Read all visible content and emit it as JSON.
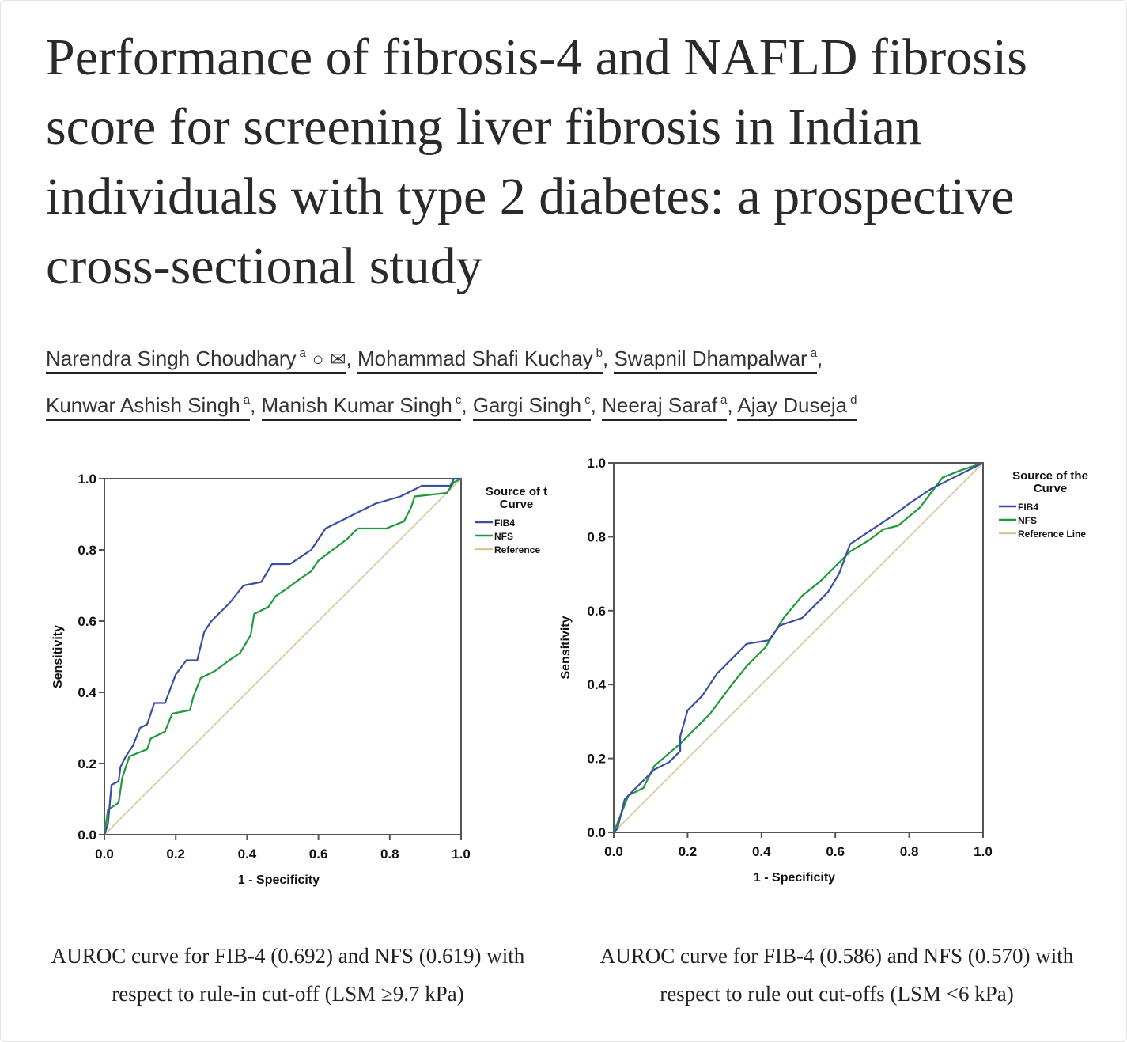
{
  "article": {
    "title": "Performance of fibrosis-4 and NAFLD fibrosis score for screening liver fibrosis in Indian individuals with type 2 diabetes: a prospective cross-sectional study",
    "authors": [
      {
        "name": "Narendra Singh Choudhary",
        "sup": "a",
        "icons": [
          "person-icon",
          "mail-icon"
        ]
      },
      {
        "name": "Mohammad Shafi Kuchay",
        "sup": "b"
      },
      {
        "name": "Swapnil Dhampalwar",
        "sup": "a"
      },
      {
        "name": "Kunwar Ashish Singh",
        "sup": "a"
      },
      {
        "name": "Manish Kumar Singh",
        "sup": "c"
      },
      {
        "name": "Gargi Singh",
        "sup": "c"
      },
      {
        "name": "Neeraj Saraf",
        "sup": "a"
      },
      {
        "name": "Ajay Duseja",
        "sup": "d"
      }
    ],
    "captions": [
      "AUROC curve for FIB-4 (0.692) and NFS (0.619) with respect to rule-in cut-off (LSM ≥9.7 kPa)",
      "AUROC curve for FIB-4 (0.586) and NFS (0.570) with respect to rule out cut-offs (LSM <6 kPa)"
    ]
  },
  "colors": {
    "fib4": "#3b4fa0",
    "nfs": "#1f9a3a",
    "reference": "#d9c79a",
    "axis": "#555555"
  },
  "chart_data": [
    {
      "type": "line",
      "xlabel": "1 - Specificity",
      "ylabel": "Sensitivity",
      "xlim": [
        0,
        1
      ],
      "ylim": [
        0,
        1
      ],
      "xticks": [
        "0.0",
        "0.2",
        "0.4",
        "0.6",
        "0.8",
        "1.0"
      ],
      "yticks": [
        "0.0",
        "0.2",
        "0.4",
        "0.6",
        "0.8",
        "1.0"
      ],
      "legend_title": [
        "Source of t",
        "Curve"
      ],
      "legend_position": "right",
      "series": [
        {
          "name": "FIB4",
          "color_key": "fib4",
          "points": [
            [
              0,
              0
            ],
            [
              0.01,
              0.03
            ],
            [
              0.02,
              0.14
            ],
            [
              0.04,
              0.15
            ],
            [
              0.045,
              0.19
            ],
            [
              0.06,
              0.22
            ],
            [
              0.08,
              0.25
            ],
            [
              0.1,
              0.3
            ],
            [
              0.12,
              0.31
            ],
            [
              0.14,
              0.37
            ],
            [
              0.17,
              0.37
            ],
            [
              0.2,
              0.45
            ],
            [
              0.23,
              0.49
            ],
            [
              0.26,
              0.49
            ],
            [
              0.28,
              0.57
            ],
            [
              0.3,
              0.6
            ],
            [
              0.35,
              0.65
            ],
            [
              0.39,
              0.7
            ],
            [
              0.44,
              0.71
            ],
            [
              0.47,
              0.76
            ],
            [
              0.52,
              0.76
            ],
            [
              0.58,
              0.8
            ],
            [
              0.62,
              0.86
            ],
            [
              0.7,
              0.9
            ],
            [
              0.76,
              0.93
            ],
            [
              0.83,
              0.95
            ],
            [
              0.89,
              0.98
            ],
            [
              0.97,
              0.98
            ],
            [
              0.98,
              1.0
            ],
            [
              1,
              1
            ]
          ]
        },
        {
          "name": "NFS",
          "color_key": "nfs",
          "points": [
            [
              0,
              0
            ],
            [
              0.01,
              0.07
            ],
            [
              0.04,
              0.09
            ],
            [
              0.05,
              0.16
            ],
            [
              0.07,
              0.22
            ],
            [
              0.12,
              0.24
            ],
            [
              0.13,
              0.27
            ],
            [
              0.17,
              0.29
            ],
            [
              0.19,
              0.34
            ],
            [
              0.24,
              0.35
            ],
            [
              0.25,
              0.39
            ],
            [
              0.27,
              0.44
            ],
            [
              0.31,
              0.46
            ],
            [
              0.35,
              0.49
            ],
            [
              0.38,
              0.51
            ],
            [
              0.41,
              0.56
            ],
            [
              0.42,
              0.62
            ],
            [
              0.46,
              0.64
            ],
            [
              0.48,
              0.67
            ],
            [
              0.51,
              0.69
            ],
            [
              0.55,
              0.72
            ],
            [
              0.58,
              0.74
            ],
            [
              0.6,
              0.77
            ],
            [
              0.64,
              0.8
            ],
            [
              0.68,
              0.83
            ],
            [
              0.71,
              0.86
            ],
            [
              0.79,
              0.86
            ],
            [
              0.84,
              0.88
            ],
            [
              0.86,
              0.92
            ],
            [
              0.87,
              0.95
            ],
            [
              0.96,
              0.96
            ],
            [
              0.98,
              0.99
            ],
            [
              1,
              1
            ]
          ]
        },
        {
          "name": "Reference",
          "color_key": "reference",
          "points": [
            [
              0,
              0
            ],
            [
              1,
              1
            ]
          ]
        }
      ]
    },
    {
      "type": "line",
      "xlabel": "1 - Specificity",
      "ylabel": "Sensitivity",
      "xlim": [
        0,
        1
      ],
      "ylim": [
        0,
        1
      ],
      "xticks": [
        "0.0",
        "0.2",
        "0.4",
        "0.6",
        "0.8",
        "1.0"
      ],
      "yticks": [
        "0.0",
        "0.2",
        "0.4",
        "0.6",
        "0.8",
        "1.0"
      ],
      "legend_title": [
        "Source of the",
        "Curve"
      ],
      "legend_position": "right",
      "series": [
        {
          "name": "FIB4",
          "color_key": "fib4",
          "points": [
            [
              0,
              0
            ],
            [
              0.01,
              0.01
            ],
            [
              0.02,
              0.05
            ],
            [
              0.03,
              0.09
            ],
            [
              0.05,
              0.11
            ],
            [
              0.08,
              0.14
            ],
            [
              0.11,
              0.17
            ],
            [
              0.15,
              0.19
            ],
            [
              0.18,
              0.22
            ],
            [
              0.18,
              0.26
            ],
            [
              0.2,
              0.33
            ],
            [
              0.24,
              0.37
            ],
            [
              0.28,
              0.43
            ],
            [
              0.31,
              0.46
            ],
            [
              0.36,
              0.51
            ],
            [
              0.42,
              0.52
            ],
            [
              0.45,
              0.56
            ],
            [
              0.51,
              0.58
            ],
            [
              0.58,
              0.65
            ],
            [
              0.61,
              0.7
            ],
            [
              0.64,
              0.78
            ],
            [
              0.7,
              0.82
            ],
            [
              0.76,
              0.86
            ],
            [
              0.8,
              0.89
            ],
            [
              0.86,
              0.93
            ],
            [
              0.92,
              0.96
            ],
            [
              1,
              1
            ]
          ]
        },
        {
          "name": "NFS",
          "color_key": "nfs",
          "points": [
            [
              0,
              0
            ],
            [
              0.01,
              0.025
            ],
            [
              0.04,
              0.1
            ],
            [
              0.08,
              0.12
            ],
            [
              0.11,
              0.18
            ],
            [
              0.18,
              0.24
            ],
            [
              0.24,
              0.3
            ],
            [
              0.26,
              0.32
            ],
            [
              0.32,
              0.4
            ],
            [
              0.36,
              0.45
            ],
            [
              0.41,
              0.5
            ],
            [
              0.46,
              0.58
            ],
            [
              0.51,
              0.64
            ],
            [
              0.56,
              0.68
            ],
            [
              0.6,
              0.72
            ],
            [
              0.64,
              0.76
            ],
            [
              0.69,
              0.79
            ],
            [
              0.73,
              0.82
            ],
            [
              0.77,
              0.83
            ],
            [
              0.83,
              0.88
            ],
            [
              0.89,
              0.96
            ],
            [
              0.94,
              0.98
            ],
            [
              1,
              1
            ]
          ]
        },
        {
          "name": "Reference Line",
          "color_key": "reference",
          "points": [
            [
              0,
              0
            ],
            [
              1,
              1
            ]
          ]
        }
      ]
    }
  ]
}
